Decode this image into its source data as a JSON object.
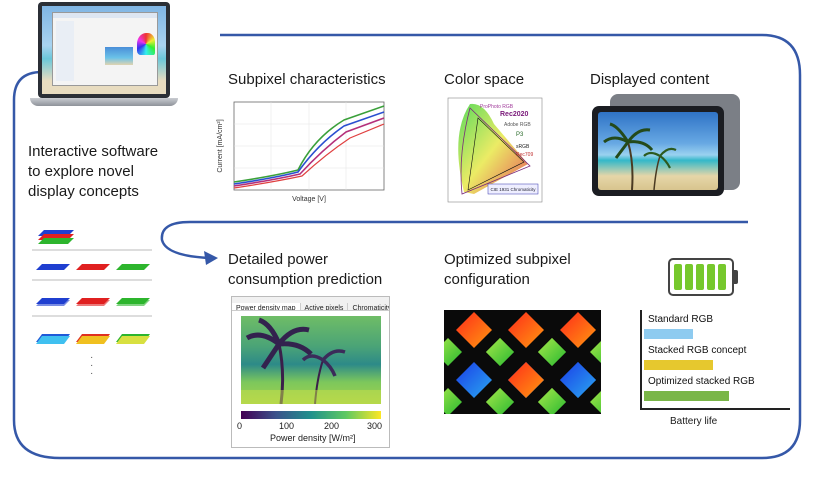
{
  "intro": {
    "line1": "Interactive software",
    "line2": "to explore novel",
    "line3": "display concepts"
  },
  "panels": {
    "subpixel": "Subpixel characteristics",
    "colorspace": "Color space",
    "content": "Displayed content",
    "power_line1": "Detailed power",
    "power_line2": "consumption prediction",
    "optimized_line1": "Optimized subpixel",
    "optimized_line2": "configuration"
  },
  "iv_plot": {
    "xlabel": "Voltage [V]",
    "ylabel": "Current [mA/cm²]"
  },
  "gamut": {
    "labels": [
      "ProPhoto RGB",
      "Rec2020",
      "Adobe RGB",
      "P3",
      "sRGB",
      "Rec709"
    ],
    "legend": "CIE 1931 Chromaticity"
  },
  "power_map": {
    "tabs": [
      "Power density map",
      "Active pixels",
      "Chromaticity"
    ],
    "ticks": [
      "0",
      "100",
      "200",
      "300"
    ],
    "unit_label": "Power density [W/m²]"
  },
  "battery_chart": {
    "xlabel": "Battery life",
    "bars": [
      {
        "label": "Standard RGB",
        "value": 0.45,
        "color": "#8ecbf0"
      },
      {
        "label": "Stacked RGB concept",
        "value": 0.63,
        "color": "#e6c82e"
      },
      {
        "label": "Optimized stacked RGB",
        "value": 0.78,
        "color": "#7ab648"
      }
    ],
    "battery_level": 0.85
  },
  "colors": {
    "frame": "#3558a8",
    "red": "#e02020",
    "green": "#2db52d",
    "blue": "#1f3fd0"
  }
}
